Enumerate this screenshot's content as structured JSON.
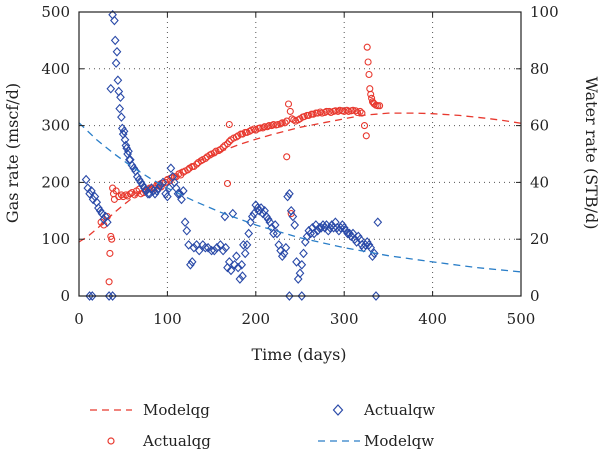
{
  "chart_data": {
    "type": "scatter",
    "xlabel": "Time (days)",
    "ylabel_left": "Gas rate (mscf/d)",
    "ylabel_right": "Water rate (STB/d)",
    "xlim": [
      0,
      500
    ],
    "ylim_left": [
      0,
      500
    ],
    "ylim_right": [
      0,
      100
    ],
    "x_ticks": [
      0,
      100,
      200,
      300,
      400,
      500
    ],
    "y_left_ticks": [
      0,
      100,
      200,
      300,
      400,
      500
    ],
    "y_right_ticks": [
      0,
      20,
      40,
      60,
      80,
      100
    ],
    "grid": "dotted",
    "legend_position": "bottom",
    "series": [
      {
        "name": "Modelqg",
        "style": "dashed-line",
        "axis": "left",
        "color": "#e8392f",
        "x": [
          0,
          10,
          20,
          30,
          40,
          50,
          60,
          80,
          100,
          120,
          140,
          160,
          180,
          200,
          220,
          250,
          280,
          300,
          320,
          350,
          380,
          400,
          430,
          460,
          480,
          500
        ],
        "y": [
          95,
          105,
          118,
          132,
          147,
          160,
          172,
          192,
          210,
          226,
          241,
          254,
          266,
          276,
          285,
          297,
          306,
          312,
          318,
          322,
          322,
          321,
          318,
          313,
          309,
          304
        ]
      },
      {
        "name": "Actualqg",
        "style": "open-circle",
        "axis": "left",
        "color": "#e8392f",
        "x": [
          25,
          28,
          32,
          34,
          35,
          36,
          37,
          38,
          39,
          40,
          42,
          45,
          48,
          50,
          53,
          55,
          58,
          60,
          63,
          65,
          68,
          70,
          73,
          75,
          78,
          80,
          83,
          85,
          88,
          90,
          93,
          95,
          98,
          100,
          103,
          105,
          108,
          110,
          113,
          115,
          118,
          120,
          123,
          125,
          128,
          130,
          133,
          135,
          138,
          140,
          143,
          145,
          148,
          150,
          153,
          155,
          158,
          160,
          163,
          165,
          168,
          170,
          172,
          175,
          178,
          180,
          183,
          185,
          188,
          190,
          193,
          195,
          198,
          200,
          203,
          205,
          208,
          210,
          213,
          215,
          218,
          220,
          223,
          225,
          228,
          230,
          233,
          235,
          237,
          239,
          241,
          243,
          245,
          248,
          250,
          253,
          255,
          258,
          260,
          263,
          265,
          268,
          270,
          273,
          275,
          278,
          280,
          283,
          285,
          288,
          290,
          293,
          295,
          298,
          300,
          303,
          305,
          308,
          310,
          313,
          315,
          318,
          320,
          323,
          325,
          326,
          327,
          328,
          329,
          330,
          331,
          332,
          333,
          334,
          336,
          338,
          340,
          168,
          170,
          235,
          240
        ],
        "y": [
          130,
          125,
          140,
          25,
          75,
          105,
          100,
          190,
          180,
          170,
          185,
          175,
          178,
          175,
          178,
          176,
          180,
          182,
          178,
          185,
          188,
          180,
          182,
          185,
          188,
          190,
          188,
          190,
          195,
          195,
          192,
          198,
          200,
          205,
          203,
          208,
          210,
          210,
          215,
          213,
          218,
          220,
          222,
          225,
          228,
          228,
          232,
          235,
          238,
          240,
          242,
          245,
          248,
          250,
          252,
          255,
          256,
          258,
          262,
          265,
          268,
          272,
          275,
          278,
          280,
          282,
          285,
          285,
          288,
          288,
          290,
          292,
          294,
          292,
          295,
          296,
          296,
          298,
          298,
          300,
          300,
          302,
          301,
          302,
          303,
          305,
          305,
          308,
          338,
          325,
          312,
          310,
          308,
          310,
          312,
          315,
          316,
          318,
          318,
          320,
          320,
          322,
          322,
          324,
          322,
          323,
          325,
          325,
          323,
          325,
          326,
          325,
          327,
          326,
          325,
          327,
          325,
          326,
          327,
          326,
          323,
          325,
          322,
          300,
          282,
          438,
          412,
          390,
          365,
          355,
          348,
          342,
          340,
          338,
          336,
          335,
          335,
          198,
          302,
          245,
          145
        ]
      },
      {
        "name": "Actualqw",
        "style": "open-diamond",
        "axis": "right",
        "color": "#2a4aa8",
        "x": [
          8,
          10,
          12,
          14,
          16,
          18,
          20,
          22,
          24,
          26,
          28,
          30,
          32,
          34,
          36,
          38,
          40,
          41,
          42,
          43,
          44,
          45,
          46,
          47,
          48,
          49,
          50,
          51,
          52,
          53,
          54,
          55,
          56,
          57,
          58,
          60,
          62,
          64,
          66,
          68,
          70,
          72,
          74,
          76,
          78,
          80,
          82,
          84,
          86,
          88,
          90,
          92,
          95,
          98,
          100,
          102,
          104,
          106,
          108,
          110,
          112,
          114,
          116,
          118,
          120,
          122,
          124,
          126,
          128,
          130,
          133,
          136,
          140,
          143,
          146,
          150,
          153,
          156,
          160,
          163,
          166,
          168,
          170,
          172,
          174,
          176,
          178,
          180,
          182,
          184,
          186,
          188,
          190,
          192,
          194,
          196,
          198,
          200,
          202,
          204,
          206,
          208,
          210,
          212,
          214,
          216,
          218,
          220,
          222,
          224,
          226,
          228,
          230,
          232,
          234,
          236,
          238,
          240,
          242,
          244,
          246,
          248,
          250,
          252,
          254,
          256,
          258,
          260,
          262,
          264,
          266,
          268,
          270,
          272,
          274,
          276,
          278,
          280,
          282,
          284,
          286,
          288,
          290,
          292,
          294,
          296,
          298,
          300,
          302,
          304,
          306,
          308,
          310,
          312,
          314,
          316,
          318,
          320,
          322,
          324,
          326,
          328,
          330,
          332,
          334,
          336,
          338,
          12,
          15,
          38,
          165,
          185,
          238,
          252
        ],
        "y": [
          41,
          38,
          36,
          37,
          34,
          35,
          33,
          31,
          30,
          29,
          27,
          28,
          26,
          0,
          73,
          99,
          97,
          90,
          82,
          86,
          76,
          72,
          66,
          70,
          63,
          59,
          57,
          58,
          55,
          53,
          52,
          50,
          51,
          48,
          48,
          46,
          45,
          44,
          42,
          41,
          40,
          39,
          38,
          37,
          36,
          36,
          38,
          37,
          36,
          37,
          38,
          39,
          40,
          36,
          35,
          38,
          45,
          42,
          40,
          38,
          36,
          36,
          34,
          37,
          26,
          23,
          18,
          11,
          12,
          17,
          18,
          16,
          18,
          17,
          17,
          16,
          16,
          17,
          18,
          16,
          17,
          10,
          12,
          9,
          29,
          11,
          14,
          10,
          6,
          11,
          18,
          15,
          18,
          22,
          26,
          28,
          29,
          32,
          31,
          30,
          31,
          29,
          30,
          28,
          27,
          26,
          24,
          22,
          25,
          22,
          18,
          16,
          14,
          15,
          17,
          35,
          36,
          30,
          28,
          25,
          12,
          6,
          8,
          11,
          15,
          19,
          21,
          23,
          22,
          24,
          22,
          25,
          23,
          24,
          24,
          25,
          24,
          25,
          23,
          24,
          25,
          24,
          26,
          24,
          23,
          24,
          25,
          24,
          23,
          22,
          22,
          21,
          22,
          20,
          19,
          21,
          20,
          18,
          17,
          18,
          19,
          18,
          17,
          14,
          15,
          0,
          26,
          0,
          0,
          0,
          28,
          7,
          0,
          0
        ]
      },
      {
        "name": "Modelqw",
        "style": "dashed-line",
        "axis": "right",
        "color": "#2a7ec8",
        "x": [
          0,
          20,
          40,
          60,
          80,
          100,
          130,
          160,
          200,
          250,
          300,
          350,
          400,
          450,
          500
        ],
        "y": [
          61,
          55,
          50,
          45.5,
          41.5,
          38,
          33.5,
          29.5,
          25,
          20.5,
          17,
          14.2,
          12,
          10,
          8.5
        ]
      }
    ]
  },
  "colors": {
    "gas": "#e8392f",
    "water_points": "#2a4aa8",
    "water_model": "#2a7ec8",
    "axis": "#222222",
    "grid": "#555555"
  }
}
